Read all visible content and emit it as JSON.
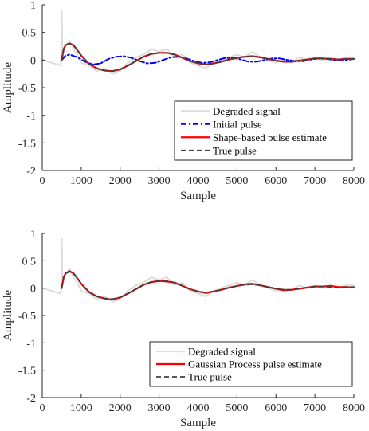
{
  "colors": {
    "degraded": "#dcdcdc",
    "initial": "#0000ff",
    "estimate": "#ff0000",
    "true": "#404040",
    "axis": "#262626"
  },
  "chart_data": [
    {
      "type": "line",
      "xlabel": "Sample",
      "ylabel": "Amplitude",
      "xlim": [
        0,
        8000
      ],
      "ylim": [
        -2,
        1
      ],
      "xticks": [
        "0",
        "1000",
        "2000",
        "3000",
        "4000",
        "5000",
        "6000",
        "7000",
        "8000"
      ],
      "yticks": [
        "-2",
        "-1.5",
        "-1",
        "-0.5",
        "0",
        "0.5",
        "1"
      ],
      "legend_position": "bottom-right",
      "series": [
        {
          "name": "Degraded signal",
          "style": "solid-light-gray",
          "x": [
            0,
            480,
            500,
            520,
            600,
            700,
            800,
            900,
            1000,
            1200,
            1400,
            1600,
            1800,
            2000,
            2200,
            2400,
            2600,
            2800,
            3000,
            3200,
            3400,
            3600,
            3800,
            4000,
            4200,
            4400,
            4600,
            4800,
            5000,
            5200,
            5400,
            5600,
            5800,
            6000,
            6200,
            6400,
            6600,
            6800,
            7000,
            7200,
            7400,
            7600,
            7800,
            8000
          ],
          "y": [
            0.0,
            -0.1,
            0.9,
            0.1,
            0.25,
            0.35,
            0.2,
            0.1,
            -0.05,
            -0.1,
            -0.2,
            -0.15,
            -0.25,
            -0.2,
            -0.05,
            0.05,
            0.1,
            0.2,
            0.15,
            0.2,
            0.05,
            0.1,
            -0.05,
            -0.1,
            -0.15,
            -0.05,
            0.0,
            0.05,
            0.1,
            0.05,
            0.15,
            0.05,
            0.0,
            -0.05,
            0.0,
            -0.05,
            0.05,
            0.0,
            0.05,
            0.0,
            0.05,
            0.0,
            0.05,
            0.05
          ]
        },
        {
          "name": "Initial pulse",
          "style": "dash-dot-blue",
          "x": [
            500,
            600,
            700,
            900,
            1100,
            1300,
            1500,
            1700,
            1900,
            2100,
            2300,
            2500,
            2700,
            2900,
            3100,
            3300,
            3500,
            3700,
            3900,
            4100,
            4300,
            4500,
            4700,
            4900,
            5100,
            5300,
            5500,
            5700,
            5900,
            6100,
            6300,
            6500,
            6700,
            6900,
            7100,
            7300,
            7500,
            7700,
            8000
          ],
          "y": [
            0.0,
            0.08,
            0.1,
            0.05,
            -0.03,
            -0.08,
            -0.06,
            0.02,
            0.06,
            0.07,
            0.04,
            -0.02,
            -0.06,
            -0.05,
            0.0,
            0.05,
            0.06,
            0.03,
            -0.02,
            -0.05,
            -0.04,
            0.0,
            0.04,
            0.04,
            0.01,
            -0.03,
            -0.03,
            0.0,
            0.03,
            0.03,
            0.0,
            -0.02,
            -0.02,
            0.01,
            0.03,
            0.02,
            0.0,
            -0.01,
            0.02
          ]
        },
        {
          "name": "Shape-based pulse estimate",
          "style": "solid-red",
          "x": [
            500,
            550,
            600,
            700,
            800,
            900,
            1000,
            1200,
            1400,
            1600,
            1800,
            2000,
            2200,
            2400,
            2600,
            2800,
            3000,
            3200,
            3400,
            3600,
            3800,
            4000,
            4200,
            4400,
            4600,
            4800,
            5000,
            5200,
            5400,
            5600,
            5800,
            6000,
            6200,
            6400,
            6600,
            6800,
            7000,
            7200,
            7400,
            7600,
            7800,
            8000
          ],
          "y": [
            0.0,
            0.2,
            0.27,
            0.3,
            0.27,
            0.18,
            0.08,
            -0.07,
            -0.15,
            -0.19,
            -0.2,
            -0.17,
            -0.1,
            -0.02,
            0.06,
            0.11,
            0.13,
            0.13,
            0.1,
            0.04,
            -0.02,
            -0.06,
            -0.08,
            -0.06,
            -0.03,
            0.01,
            0.04,
            0.06,
            0.07,
            0.05,
            0.02,
            -0.01,
            -0.03,
            -0.03,
            -0.01,
            0.01,
            0.03,
            0.03,
            0.02,
            0.01,
            0.02,
            0.02
          ]
        },
        {
          "name": "True pulse",
          "style": "dashed-dark-gray",
          "x": [
            500,
            550,
            600,
            700,
            800,
            900,
            1000,
            1200,
            1400,
            1600,
            1800,
            2000,
            2200,
            2400,
            2600,
            2800,
            3000,
            3200,
            3400,
            3600,
            3800,
            4000,
            4200,
            4400,
            4600,
            4800,
            5000,
            5200,
            5400,
            5600,
            5800,
            6000,
            6200,
            6400,
            6600,
            6800,
            7000,
            7200,
            7400,
            7600,
            7800,
            8000
          ],
          "y": [
            0.0,
            0.2,
            0.27,
            0.3,
            0.27,
            0.18,
            0.08,
            -0.07,
            -0.15,
            -0.19,
            -0.2,
            -0.17,
            -0.1,
            -0.02,
            0.06,
            0.11,
            0.13,
            0.13,
            0.1,
            0.04,
            -0.02,
            -0.06,
            -0.08,
            -0.06,
            -0.03,
            0.01,
            0.04,
            0.06,
            0.07,
            0.05,
            0.02,
            -0.01,
            -0.03,
            -0.03,
            -0.01,
            0.01,
            0.03,
            0.03,
            0.02,
            0.01,
            0.02,
            0.02
          ]
        }
      ]
    },
    {
      "type": "line",
      "xlabel": "Sample",
      "ylabel": "Amplitude",
      "xlim": [
        0,
        8000
      ],
      "ylim": [
        -2,
        1
      ],
      "xticks": [
        "0",
        "1000",
        "2000",
        "3000",
        "4000",
        "5000",
        "6000",
        "7000",
        "8000"
      ],
      "yticks": [
        "-2",
        "-1.5",
        "-1",
        "-0.5",
        "0",
        "0.5",
        "1"
      ],
      "legend_position": "bottom-right",
      "series": [
        {
          "name": "Degraded signal",
          "style": "solid-light-gray",
          "x": [
            0,
            480,
            500,
            520,
            600,
            700,
            800,
            900,
            1000,
            1200,
            1400,
            1600,
            1800,
            2000,
            2200,
            2400,
            2600,
            2800,
            3000,
            3200,
            3400,
            3600,
            3800,
            4000,
            4200,
            4400,
            4600,
            4800,
            5000,
            5200,
            5400,
            5600,
            5800,
            6000,
            6200,
            6400,
            6600,
            6800,
            7000,
            7200,
            7400,
            7600,
            7800,
            8000
          ],
          "y": [
            0.0,
            -0.1,
            0.9,
            0.1,
            0.25,
            0.35,
            0.2,
            0.1,
            -0.05,
            -0.1,
            -0.2,
            -0.15,
            -0.25,
            -0.2,
            -0.05,
            0.05,
            0.1,
            0.2,
            0.15,
            0.2,
            0.05,
            0.1,
            -0.05,
            -0.1,
            -0.15,
            -0.05,
            0.0,
            0.05,
            0.1,
            0.05,
            0.15,
            0.05,
            0.0,
            -0.05,
            0.0,
            -0.05,
            0.05,
            0.0,
            0.05,
            0.0,
            0.05,
            0.0,
            0.05,
            0.05
          ]
        },
        {
          "name": "Gaussian Process pulse estimate",
          "style": "solid-red",
          "x": [
            500,
            550,
            600,
            700,
            800,
            900,
            1000,
            1200,
            1400,
            1600,
            1800,
            2000,
            2200,
            2400,
            2600,
            2800,
            3000,
            3200,
            3400,
            3600,
            3800,
            4000,
            4200,
            4400,
            4600,
            4800,
            5000,
            5200,
            5400,
            5600,
            5800,
            6000,
            6200,
            6400,
            6600,
            6800,
            7000,
            7200,
            7400,
            7600,
            7800,
            8000
          ],
          "y": [
            0.0,
            0.2,
            0.27,
            0.31,
            0.27,
            0.18,
            0.08,
            -0.07,
            -0.15,
            -0.19,
            -0.21,
            -0.17,
            -0.1,
            -0.02,
            0.06,
            0.11,
            0.13,
            0.12,
            0.1,
            0.04,
            -0.02,
            -0.06,
            -0.09,
            -0.06,
            -0.03,
            0.01,
            0.04,
            0.07,
            0.08,
            0.05,
            0.02,
            -0.01,
            -0.04,
            -0.03,
            -0.01,
            0.01,
            0.03,
            0.03,
            0.04,
            0.02,
            0.02,
            0.01
          ]
        },
        {
          "name": "True pulse",
          "style": "dashed-dark-gray",
          "x": [
            500,
            550,
            600,
            700,
            800,
            900,
            1000,
            1200,
            1400,
            1600,
            1800,
            2000,
            2200,
            2400,
            2600,
            2800,
            3000,
            3200,
            3400,
            3600,
            3800,
            4000,
            4200,
            4400,
            4600,
            4800,
            5000,
            5200,
            5400,
            5600,
            5800,
            6000,
            6200,
            6400,
            6600,
            6800,
            7000,
            7200,
            7400,
            7600,
            7800,
            8000
          ],
          "y": [
            0.0,
            0.2,
            0.27,
            0.3,
            0.27,
            0.18,
            0.08,
            -0.07,
            -0.15,
            -0.19,
            -0.2,
            -0.17,
            -0.1,
            -0.02,
            0.06,
            0.11,
            0.13,
            0.13,
            0.1,
            0.04,
            -0.02,
            -0.06,
            -0.08,
            -0.06,
            -0.03,
            0.01,
            0.04,
            0.06,
            0.07,
            0.05,
            0.02,
            -0.01,
            -0.03,
            -0.03,
            -0.01,
            0.01,
            0.03,
            0.03,
            0.02,
            0.01,
            0.02,
            0.02
          ]
        }
      ]
    }
  ]
}
